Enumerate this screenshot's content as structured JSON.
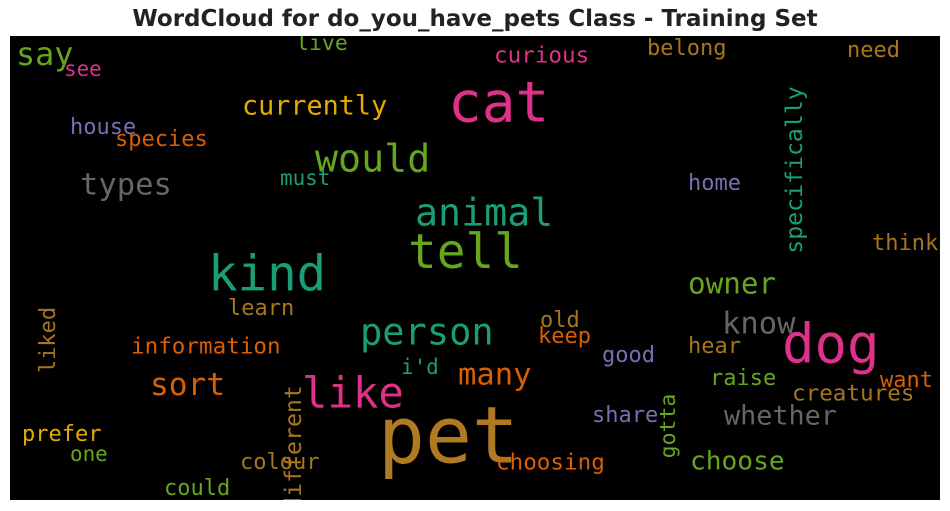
{
  "chart_data": {
    "type": "wordcloud",
    "title": "WordCloud for do_you_have_pets Class - Training Set",
    "background": "#000000",
    "words": [
      {
        "text": "pet",
        "weight": 1.0,
        "color": "#b07a22",
        "orientation": "horizontal"
      },
      {
        "text": "cat",
        "weight": 0.7,
        "color": "#e0318a",
        "orientation": "horizontal"
      },
      {
        "text": "dog",
        "weight": 0.67,
        "color": "#e0318a",
        "orientation": "horizontal"
      },
      {
        "text": "kind",
        "weight": 0.6,
        "color": "#1b9e77",
        "orientation": "horizontal"
      },
      {
        "text": "tell",
        "weight": 0.58,
        "color": "#66a61e",
        "orientation": "horizontal"
      },
      {
        "text": "like",
        "weight": 0.5,
        "color": "#e0318a",
        "orientation": "horizontal"
      },
      {
        "text": "would",
        "weight": 0.44,
        "color": "#66a61e",
        "orientation": "horizontal"
      },
      {
        "text": "animal",
        "weight": 0.44,
        "color": "#1b9e77",
        "orientation": "horizontal"
      },
      {
        "text": "person",
        "weight": 0.42,
        "color": "#1b9e77",
        "orientation": "horizontal"
      },
      {
        "text": "say",
        "weight": 0.34,
        "color": "#66a61e",
        "orientation": "horizontal"
      },
      {
        "text": "types",
        "weight": 0.32,
        "color": "#666666",
        "orientation": "horizontal"
      },
      {
        "text": "sort",
        "weight": 0.33,
        "color": "#d95f02",
        "orientation": "horizontal"
      },
      {
        "text": "many",
        "weight": 0.32,
        "color": "#d95f02",
        "orientation": "horizontal"
      },
      {
        "text": "know",
        "weight": 0.32,
        "color": "#666666",
        "orientation": "horizontal"
      },
      {
        "text": "owner",
        "weight": 0.3,
        "color": "#66a61e",
        "orientation": "horizontal"
      },
      {
        "text": "currently",
        "weight": 0.26,
        "color": "#e6ab02",
        "orientation": "horizontal"
      },
      {
        "text": "whether",
        "weight": 0.26,
        "color": "#666666",
        "orientation": "horizontal"
      },
      {
        "text": "choose",
        "weight": 0.25,
        "color": "#66a61e",
        "orientation": "horizontal"
      },
      {
        "text": "specifically",
        "weight": 0.2,
        "color": "#1b9e77",
        "orientation": "vertical"
      },
      {
        "text": "different",
        "weight": 0.2,
        "color": "#a6761d",
        "orientation": "vertical"
      },
      {
        "text": "creatures",
        "weight": 0.19,
        "color": "#a6761d",
        "orientation": "horizontal"
      },
      {
        "text": "information",
        "weight": 0.19,
        "color": "#d95f02",
        "orientation": "horizontal"
      },
      {
        "text": "choosing",
        "weight": 0.19,
        "color": "#d95f02",
        "orientation": "horizontal"
      },
      {
        "text": "curious",
        "weight": 0.19,
        "color": "#e0318a",
        "orientation": "horizontal"
      },
      {
        "text": "species",
        "weight": 0.18,
        "color": "#d95f02",
        "orientation": "horizontal"
      },
      {
        "text": "house",
        "weight": 0.18,
        "color": "#7570b3",
        "orientation": "horizontal"
      },
      {
        "text": "belong",
        "weight": 0.18,
        "color": "#a6761d",
        "orientation": "horizontal"
      },
      {
        "text": "home",
        "weight": 0.18,
        "color": "#7570b3",
        "orientation": "horizontal"
      },
      {
        "text": "think",
        "weight": 0.18,
        "color": "#a6761d",
        "orientation": "horizontal"
      },
      {
        "text": "learn",
        "weight": 0.18,
        "color": "#a6761d",
        "orientation": "horizontal"
      },
      {
        "text": "liked",
        "weight": 0.18,
        "color": "#a6761d",
        "orientation": "vertical"
      },
      {
        "text": "keep",
        "weight": 0.18,
        "color": "#d95f02",
        "orientation": "horizontal"
      },
      {
        "text": "old",
        "weight": 0.18,
        "color": "#a6761d",
        "orientation": "horizontal"
      },
      {
        "text": "good",
        "weight": 0.18,
        "color": "#7570b3",
        "orientation": "horizontal"
      },
      {
        "text": "hear",
        "weight": 0.18,
        "color": "#a6761d",
        "orientation": "horizontal"
      },
      {
        "text": "raise",
        "weight": 0.18,
        "color": "#66a61e",
        "orientation": "horizontal"
      },
      {
        "text": "want",
        "weight": 0.18,
        "color": "#d95f02",
        "orientation": "horizontal"
      },
      {
        "text": "share",
        "weight": 0.18,
        "color": "#7570b3",
        "orientation": "horizontal"
      },
      {
        "text": "gotta",
        "weight": 0.17,
        "color": "#66a61e",
        "orientation": "vertical"
      },
      {
        "text": "prefer",
        "weight": 0.18,
        "color": "#e6ab02",
        "orientation": "horizontal"
      },
      {
        "text": "colour",
        "weight": 0.18,
        "color": "#a6761d",
        "orientation": "horizontal"
      },
      {
        "text": "could",
        "weight": 0.18,
        "color": "#66a61e",
        "orientation": "horizontal"
      },
      {
        "text": "need",
        "weight": 0.18,
        "color": "#a6761d",
        "orientation": "horizontal"
      },
      {
        "text": "i'd",
        "weight": 0.16,
        "color": "#1b9e77",
        "orientation": "horizontal"
      },
      {
        "text": "must",
        "weight": 0.16,
        "color": "#1b9e77",
        "orientation": "horizontal"
      },
      {
        "text": "live",
        "weight": 0.17,
        "color": "#66a61e",
        "orientation": "horizontal"
      },
      {
        "text": "see",
        "weight": 0.16,
        "color": "#e0318a",
        "orientation": "horizontal"
      },
      {
        "text": "one",
        "weight": 0.16,
        "color": "#66a61e",
        "orientation": "horizontal"
      }
    ]
  }
}
